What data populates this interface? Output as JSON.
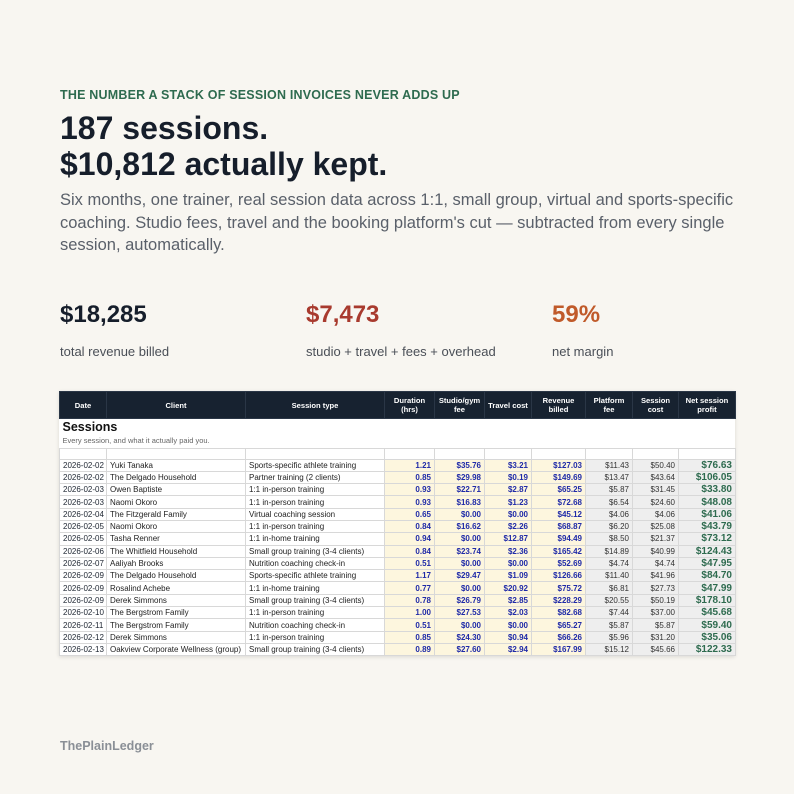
{
  "eyebrow": "THE NUMBER A STACK OF SESSION INVOICES NEVER ADDS UP",
  "headline": {
    "line1": "187 sessions.",
    "line2": "$10,812 actually kept."
  },
  "lede": "Six months, one trainer, real session data across 1:1, small group, virtual and sports-specific coaching. Studio fees, travel and the booking platform's cut — subtracted from every single session, automatically.",
  "stats": [
    {
      "value": "$18,285",
      "label": "total revenue billed",
      "color": "#161e2b"
    },
    {
      "value": "$7,473",
      "label": "studio + travel + fees + overhead",
      "color": "#a83a2e"
    },
    {
      "value": "59%",
      "label": "net margin",
      "color": "#c05a2a"
    }
  ],
  "sheet": {
    "title": "Sessions",
    "subtitle": "Every session, and what it actually paid you.",
    "columns": [
      "Date",
      "Client",
      "Session type",
      "Duration (hrs)",
      "Studio/gym fee",
      "Travel cost",
      "Revenue billed",
      "Platform fee",
      "Session cost",
      "Net session profit"
    ],
    "rows": [
      [
        "2026-02-02",
        "Yuki Tanaka",
        "Sports-specific athlete training",
        "1.21",
        "$35.76",
        "$3.21",
        "$127.03",
        "$11.43",
        "$50.40",
        "$76.63"
      ],
      [
        "2026-02-02",
        "The Delgado Household",
        "Partner training (2 clients)",
        "0.85",
        "$29.98",
        "$0.19",
        "$149.69",
        "$13.47",
        "$43.64",
        "$106.05"
      ],
      [
        "2026-02-03",
        "Owen Baptiste",
        "1:1 in-person training",
        "0.93",
        "$22.71",
        "$2.87",
        "$65.25",
        "$5.87",
        "$31.45",
        "$33.80"
      ],
      [
        "2026-02-03",
        "Naomi Okoro",
        "1:1 in-person training",
        "0.93",
        "$16.83",
        "$1.23",
        "$72.68",
        "$6.54",
        "$24.60",
        "$48.08"
      ],
      [
        "2026-02-04",
        "The Fitzgerald Family",
        "Virtual coaching session",
        "0.65",
        "$0.00",
        "$0.00",
        "$45.12",
        "$4.06",
        "$4.06",
        "$41.06"
      ],
      [
        "2026-02-05",
        "Naomi Okoro",
        "1:1 in-person training",
        "0.84",
        "$16.62",
        "$2.26",
        "$68.87",
        "$6.20",
        "$25.08",
        "$43.79"
      ],
      [
        "2026-02-05",
        "Tasha Renner",
        "1:1 in-home training",
        "0.94",
        "$0.00",
        "$12.87",
        "$94.49",
        "$8.50",
        "$21.37",
        "$73.12"
      ],
      [
        "2026-02-06",
        "The Whitfield Household",
        "Small group training (3-4 clients)",
        "0.84",
        "$23.74",
        "$2.36",
        "$165.42",
        "$14.89",
        "$40.99",
        "$124.43"
      ],
      [
        "2026-02-07",
        "Aaliyah Brooks",
        "Nutrition coaching check-in",
        "0.51",
        "$0.00",
        "$0.00",
        "$52.69",
        "$4.74",
        "$4.74",
        "$47.95"
      ],
      [
        "2026-02-09",
        "The Delgado Household",
        "Sports-specific athlete training",
        "1.17",
        "$29.47",
        "$1.09",
        "$126.66",
        "$11.40",
        "$41.96",
        "$84.70"
      ],
      [
        "2026-02-09",
        "Rosalind Achebe",
        "1:1 in-home training",
        "0.77",
        "$0.00",
        "$20.92",
        "$75.72",
        "$6.81",
        "$27.73",
        "$47.99"
      ],
      [
        "2026-02-09",
        "Derek Simmons",
        "Small group training (3-4 clients)",
        "0.78",
        "$26.79",
        "$2.85",
        "$228.29",
        "$20.55",
        "$50.19",
        "$178.10"
      ],
      [
        "2026-02-10",
        "The Bergstrom Family",
        "1:1 in-person training",
        "1.00",
        "$27.53",
        "$2.03",
        "$82.68",
        "$7.44",
        "$37.00",
        "$45.68"
      ],
      [
        "2026-02-11",
        "The Bergstrom Family",
        "Nutrition coaching check-in",
        "0.51",
        "$0.00",
        "$0.00",
        "$65.27",
        "$5.87",
        "$5.87",
        "$59.40"
      ],
      [
        "2026-02-12",
        "Derek Simmons",
        "1:1 in-person training",
        "0.85",
        "$24.30",
        "$0.94",
        "$66.26",
        "$5.96",
        "$31.20",
        "$35.06"
      ],
      [
        "2026-02-13",
        "Oakview Corporate Wellness (group)",
        "Small group training (3-4 clients)",
        "0.89",
        "$27.60",
        "$2.94",
        "$167.99",
        "$15.12",
        "$45.66",
        "$122.33"
      ]
    ]
  },
  "brand": "ThePlainLedger"
}
